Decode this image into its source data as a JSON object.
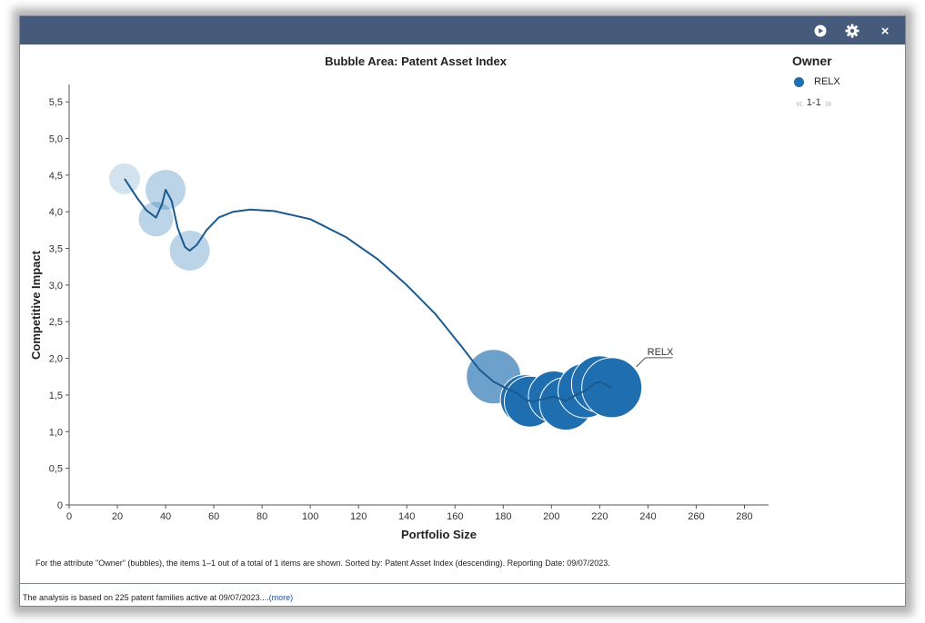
{
  "window": {
    "controls": {
      "play_icon": "play-circle-icon",
      "settings_icon": "gear-icon",
      "close_label": "×"
    }
  },
  "legend": {
    "title": "Owner",
    "items": [
      {
        "label": "RELX",
        "color": "#1f6fb0"
      }
    ],
    "pager": "1-1"
  },
  "chart_data": {
    "type": "scatter",
    "title": "Bubble Area:  Patent Asset Index",
    "xlabel": "Portfolio Size",
    "ylabel": "Competitive Impact",
    "xlim": [
      0,
      290
    ],
    "ylim": [
      0,
      5.7
    ],
    "xticks": [
      "0",
      "20",
      "40",
      "60",
      "80",
      "100",
      "120",
      "140",
      "160",
      "180",
      "200",
      "220",
      "240",
      "260",
      "280"
    ],
    "yticks": [
      "0",
      "0,5",
      "1,0",
      "1,5",
      "2,0",
      "2,5",
      "3,0",
      "3,5",
      "4,0",
      "4,5",
      "5,0",
      "5,5"
    ],
    "series": [
      {
        "name": "RELX",
        "color": "#1f6fb0",
        "points": [
          {
            "x": 23,
            "y": 4.45,
            "size": 17
          },
          {
            "x": 40,
            "y": 4.3,
            "size": 22
          },
          {
            "x": 36,
            "y": 3.9,
            "size": 19
          },
          {
            "x": 50,
            "y": 3.47,
            "size": 22
          },
          {
            "x": 176,
            "y": 1.75,
            "size": 30
          },
          {
            "x": 189,
            "y": 1.44,
            "size": 27
          },
          {
            "x": 191,
            "y": 1.41,
            "size": 28
          },
          {
            "x": 201,
            "y": 1.48,
            "size": 28
          },
          {
            "x": 206,
            "y": 1.38,
            "size": 29
          },
          {
            "x": 214,
            "y": 1.56,
            "size": 30
          },
          {
            "x": 220,
            "y": 1.65,
            "size": 31
          },
          {
            "x": 225,
            "y": 1.6,
            "size": 33
          }
        ],
        "trend": [
          [
            23,
            4.45
          ],
          [
            28,
            4.2
          ],
          [
            32,
            4.02
          ],
          [
            36,
            3.92
          ],
          [
            38.5,
            4.1
          ],
          [
            40,
            4.3
          ],
          [
            42.5,
            4.15
          ],
          [
            45,
            3.78
          ],
          [
            48,
            3.52
          ],
          [
            50,
            3.47
          ],
          [
            53,
            3.55
          ],
          [
            57,
            3.75
          ],
          [
            62,
            3.92
          ],
          [
            68,
            4.0
          ],
          [
            75,
            4.03
          ],
          [
            85,
            4.01
          ],
          [
            100,
            3.9
          ],
          [
            115,
            3.65
          ],
          [
            128,
            3.35
          ],
          [
            140,
            3.0
          ],
          [
            152,
            2.6
          ],
          [
            163,
            2.15
          ],
          [
            170,
            1.85
          ],
          [
            176,
            1.68
          ],
          [
            182,
            1.58
          ],
          [
            186,
            1.52
          ],
          [
            189,
            1.44
          ],
          [
            192,
            1.41
          ],
          [
            196,
            1.44
          ],
          [
            201,
            1.48
          ],
          [
            206,
            1.42
          ],
          [
            210,
            1.5
          ],
          [
            214,
            1.56
          ],
          [
            218,
            1.66
          ],
          [
            220,
            1.68
          ],
          [
            225,
            1.6
          ]
        ],
        "end_label": "RELX"
      }
    ]
  },
  "info_text": "For the attribute \"Owner\" (bubbles), the items 1–1 out of a total of 1 items are shown. Sorted by: Patent Asset Index (descending). Reporting Date: 09/07/2023.",
  "footer": {
    "text": "The analysis is based on 225 patent families active at 09/07/2023....",
    "link": "(more)"
  }
}
